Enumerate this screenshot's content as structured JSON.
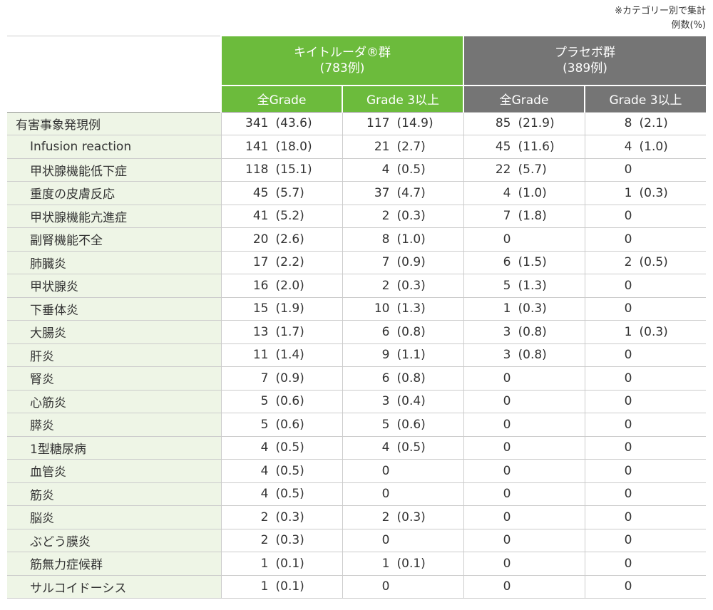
{
  "notes": [
    "※カテゴリー別で集計",
    "例数(%)"
  ],
  "groups": [
    {
      "name": "キイトルーダ®群",
      "count": "(783例)"
    },
    {
      "name": "プラセボ群",
      "count": "(389例)"
    }
  ],
  "subheaders": [
    "全Grade",
    "Grade 3以上",
    "全Grade",
    "Grade 3以上"
  ],
  "rows": [
    {
      "label": "有害事象発現例",
      "cells": [
        {
          "n": "341",
          "pct": "(43.6)"
        },
        {
          "n": "117",
          "pct": "(14.9)"
        },
        {
          "n": "85",
          "pct": "(21.9)"
        },
        {
          "n": "8",
          "pct": "(2.1)"
        }
      ]
    },
    {
      "label": "Infusion reaction",
      "cells": [
        {
          "n": "141",
          "pct": "(18.0)"
        },
        {
          "n": "21",
          "pct": "(2.7)"
        },
        {
          "n": "45",
          "pct": "(11.6)"
        },
        {
          "n": "4",
          "pct": "(1.0)"
        }
      ]
    },
    {
      "label": "甲状腺機能低下症",
      "cells": [
        {
          "n": "118",
          "pct": "(15.1)"
        },
        {
          "n": "4",
          "pct": "(0.5)"
        },
        {
          "n": "22",
          "pct": "(5.7)"
        },
        {
          "n": "0"
        }
      ]
    },
    {
      "label": "重度の皮膚反応",
      "cells": [
        {
          "n": "45",
          "pct": "(5.7)"
        },
        {
          "n": "37",
          "pct": "(4.7)"
        },
        {
          "n": "4",
          "pct": "(1.0)"
        },
        {
          "n": "1",
          "pct": "(0.3)"
        }
      ]
    },
    {
      "label": "甲状腺機能亢進症",
      "cells": [
        {
          "n": "41",
          "pct": "(5.2)"
        },
        {
          "n": "2",
          "pct": "(0.3)"
        },
        {
          "n": "7",
          "pct": "(1.8)"
        },
        {
          "n": "0"
        }
      ]
    },
    {
      "label": "副腎機能不全",
      "cells": [
        {
          "n": "20",
          "pct": "(2.6)"
        },
        {
          "n": "8",
          "pct": "(1.0)"
        },
        {
          "n": "0"
        },
        {
          "n": "0"
        }
      ]
    },
    {
      "label": "肺臓炎",
      "cells": [
        {
          "n": "17",
          "pct": "(2.2)"
        },
        {
          "n": "7",
          "pct": "(0.9)"
        },
        {
          "n": "6",
          "pct": "(1.5)"
        },
        {
          "n": "2",
          "pct": "(0.5)"
        }
      ]
    },
    {
      "label": "甲状腺炎",
      "cells": [
        {
          "n": "16",
          "pct": "(2.0)"
        },
        {
          "n": "2",
          "pct": "(0.3)"
        },
        {
          "n": "5",
          "pct": "(1.3)"
        },
        {
          "n": "0"
        }
      ]
    },
    {
      "label": "下垂体炎",
      "cells": [
        {
          "n": "15",
          "pct": "(1.9)"
        },
        {
          "n": "10",
          "pct": "(1.3)"
        },
        {
          "n": "1",
          "pct": "(0.3)"
        },
        {
          "n": "0"
        }
      ]
    },
    {
      "label": "大腸炎",
      "cells": [
        {
          "n": "13",
          "pct": "(1.7)"
        },
        {
          "n": "6",
          "pct": "(0.8)"
        },
        {
          "n": "3",
          "pct": "(0.8)"
        },
        {
          "n": "1",
          "pct": "(0.3)"
        }
      ]
    },
    {
      "label": "肝炎",
      "cells": [
        {
          "n": "11",
          "pct": "(1.4)"
        },
        {
          "n": "9",
          "pct": "(1.1)"
        },
        {
          "n": "3",
          "pct": "(0.8)"
        },
        {
          "n": "0"
        }
      ]
    },
    {
      "label": "腎炎",
      "cells": [
        {
          "n": "7",
          "pct": "(0.9)"
        },
        {
          "n": "6",
          "pct": "(0.8)"
        },
        {
          "n": "0"
        },
        {
          "n": "0"
        }
      ]
    },
    {
      "label": "心筋炎",
      "cells": [
        {
          "n": "5",
          "pct": "(0.6)"
        },
        {
          "n": "3",
          "pct": "(0.4)"
        },
        {
          "n": "0"
        },
        {
          "n": "0"
        }
      ]
    },
    {
      "label": "膵炎",
      "cells": [
        {
          "n": "5",
          "pct": "(0.6)"
        },
        {
          "n": "5",
          "pct": "(0.6)"
        },
        {
          "n": "0"
        },
        {
          "n": "0"
        }
      ]
    },
    {
      "label": "1型糖尿病",
      "cells": [
        {
          "n": "4",
          "pct": "(0.5)"
        },
        {
          "n": "4",
          "pct": "(0.5)"
        },
        {
          "n": "0"
        },
        {
          "n": "0"
        }
      ]
    },
    {
      "label": "血管炎",
      "cells": [
        {
          "n": "4",
          "pct": "(0.5)"
        },
        {
          "n": "0"
        },
        {
          "n": "0"
        },
        {
          "n": "0"
        }
      ]
    },
    {
      "label": "筋炎",
      "cells": [
        {
          "n": "4",
          "pct": "(0.5)"
        },
        {
          "n": "0"
        },
        {
          "n": "0"
        },
        {
          "n": "0"
        }
      ]
    },
    {
      "label": "脳炎",
      "cells": [
        {
          "n": "2",
          "pct": "(0.3)"
        },
        {
          "n": "2",
          "pct": "(0.3)"
        },
        {
          "n": "0"
        },
        {
          "n": "0"
        }
      ]
    },
    {
      "label": "ぶどう膜炎",
      "cells": [
        {
          "n": "2",
          "pct": "(0.3)"
        },
        {
          "n": "0"
        },
        {
          "n": "0"
        },
        {
          "n": "0"
        }
      ]
    },
    {
      "label": "筋無力症候群",
      "cells": [
        {
          "n": "1",
          "pct": "(0.1)"
        },
        {
          "n": "1",
          "pct": "(0.1)"
        },
        {
          "n": "0"
        },
        {
          "n": "0"
        }
      ]
    },
    {
      "label": "サルコイドーシス",
      "cells": [
        {
          "n": "1",
          "pct": "(0.1)"
        },
        {
          "n": "0"
        },
        {
          "n": "0"
        },
        {
          "n": "0"
        }
      ]
    }
  ]
}
